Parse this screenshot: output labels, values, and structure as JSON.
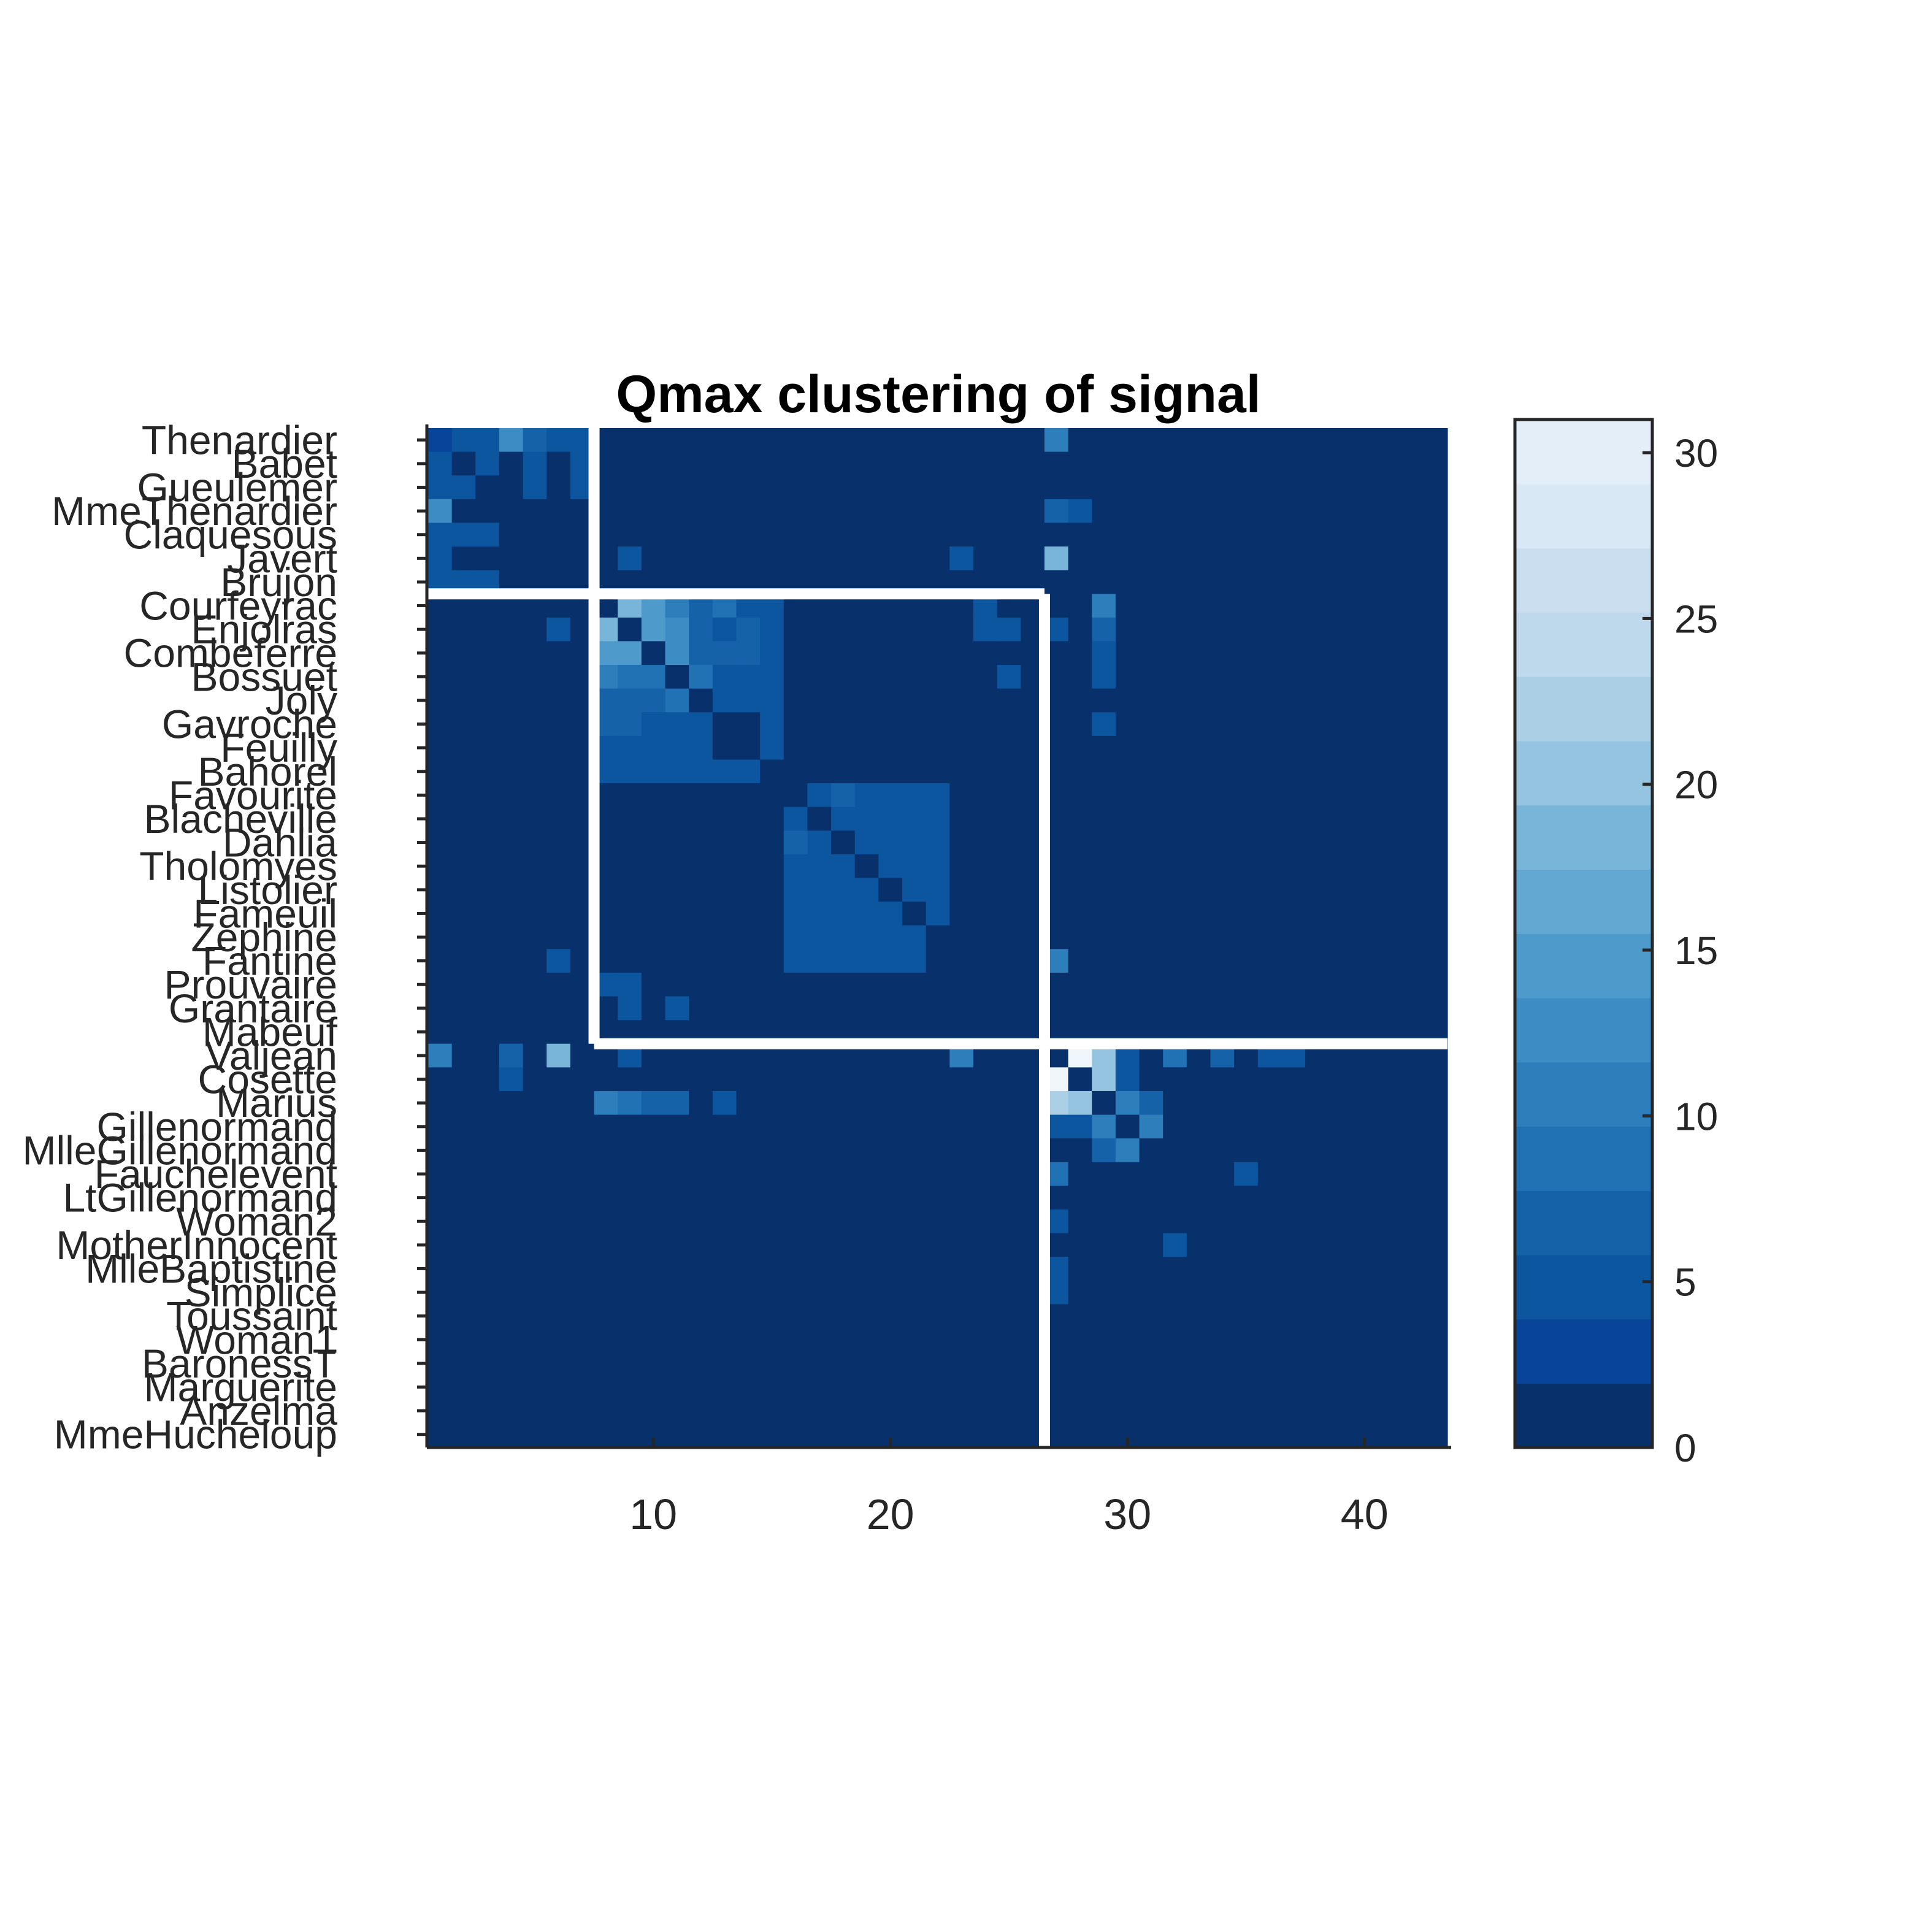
{
  "chart_data": {
    "type": "heatmap",
    "title": "Qmax clustering of signal",
    "xlabel": "",
    "ylabel": "",
    "n": 43,
    "xticks": [
      10,
      20,
      30,
      40
    ],
    "row_labels": [
      "Thenardier",
      "Babet",
      "Gueulemer",
      "MmeThenardier",
      "Claquesous",
      "Javert",
      "Brujon",
      "Courfeyrac",
      "Enjolras",
      "Combeferre",
      "Bossuet",
      "Joly",
      "Gavroche",
      "Feuilly",
      "Bahorel",
      "Favourite",
      "Blacheville",
      "Dahlia",
      "Tholomyes",
      "Listolier",
      "Fameuil",
      "Zephine",
      "Fantine",
      "Prouvaire",
      "Grantaire",
      "Mabeuf",
      "Valjean",
      "Cosette",
      "Marius",
      "Gillenormand",
      "MlleGillenormand",
      "Fauchelevent",
      "LtGillenormand",
      "Woman2",
      "MotherInnocent",
      "MlleBaptistine",
      "Simplice",
      "Toussaint",
      "Woman1",
      "BaronessT",
      "Marguerite",
      "Anzelma",
      "MmeHucheloup"
    ],
    "colorbar": {
      "min": 0,
      "max": 31,
      "levels": 16,
      "ticks": [
        0,
        5,
        10,
        15,
        20,
        25,
        30
      ]
    },
    "colormap": [
      "#08306b",
      "#08449a",
      "#0c56a0",
      "#1562a9",
      "#2171b5",
      "#2f7ebc",
      "#3d8dc4",
      "#4e9acb",
      "#62a8d2",
      "#79b5d9",
      "#94c4df",
      "#abd0e6",
      "#bed8ec",
      "#cadef0",
      "#d9e8f5",
      "#e3eef9",
      "#eff6fc",
      "#f7fbff"
    ],
    "cluster_boundaries": [
      7,
      26
    ],
    "cells": [
      [
        0,
        0,
        2
      ],
      [
        0,
        1,
        4
      ],
      [
        0,
        2,
        4
      ],
      [
        0,
        3,
        12
      ],
      [
        0,
        4,
        6
      ],
      [
        0,
        5,
        4
      ],
      [
        0,
        6,
        5
      ],
      [
        0,
        26,
        11
      ],
      [
        1,
        0,
        4
      ],
      [
        1,
        2,
        4
      ],
      [
        1,
        4,
        4
      ],
      [
        1,
        6,
        4
      ],
      [
        2,
        0,
        5
      ],
      [
        2,
        1,
        4
      ],
      [
        2,
        4,
        4
      ],
      [
        2,
        6,
        4
      ],
      [
        3,
        0,
        12
      ],
      [
        3,
        26,
        6
      ],
      [
        3,
        27,
        4
      ],
      [
        4,
        0,
        4
      ],
      [
        4,
        1,
        4
      ],
      [
        4,
        2,
        4
      ],
      [
        5,
        0,
        4
      ],
      [
        5,
        8,
        4
      ],
      [
        5,
        22,
        4
      ],
      [
        5,
        26,
        19
      ],
      [
        6,
        0,
        4
      ],
      [
        6,
        1,
        4
      ],
      [
        6,
        2,
        4
      ],
      [
        7,
        8,
        18
      ],
      [
        7,
        9,
        14
      ],
      [
        7,
        10,
        10
      ],
      [
        7,
        11,
        6
      ],
      [
        7,
        12,
        9
      ],
      [
        7,
        13,
        5
      ],
      [
        7,
        14,
        5
      ],
      [
        7,
        23,
        4
      ],
      [
        7,
        28,
        10
      ],
      [
        8,
        5,
        4
      ],
      [
        8,
        7,
        18
      ],
      [
        8,
        8,
        1
      ],
      [
        8,
        9,
        15
      ],
      [
        8,
        10,
        12
      ],
      [
        8,
        11,
        6
      ],
      [
        8,
        12,
        5
      ],
      [
        8,
        13,
        6
      ],
      [
        8,
        14,
        4
      ],
      [
        8,
        23,
        4
      ],
      [
        8,
        24,
        4
      ],
      [
        8,
        26,
        4
      ],
      [
        8,
        28,
        7
      ],
      [
        9,
        7,
        14
      ],
      [
        9,
        8,
        15
      ],
      [
        9,
        9,
        1
      ],
      [
        9,
        10,
        12
      ],
      [
        9,
        11,
        6
      ],
      [
        9,
        12,
        6
      ],
      [
        9,
        13,
        6
      ],
      [
        9,
        14,
        5
      ],
      [
        9,
        28,
        5
      ],
      [
        10,
        7,
        10
      ],
      [
        10,
        8,
        8
      ],
      [
        10,
        9,
        8
      ],
      [
        10,
        10,
        1
      ],
      [
        10,
        11,
        8
      ],
      [
        10,
        12,
        4
      ],
      [
        10,
        13,
        4
      ],
      [
        10,
        14,
        4
      ],
      [
        10,
        24,
        4
      ],
      [
        10,
        28,
        5
      ],
      [
        11,
        7,
        6
      ],
      [
        11,
        8,
        6
      ],
      [
        11,
        9,
        6
      ],
      [
        11,
        10,
        8
      ],
      [
        11,
        11,
        1
      ],
      [
        11,
        12,
        4
      ],
      [
        11,
        13,
        5
      ],
      [
        11,
        14,
        5
      ],
      [
        12,
        7,
        7
      ],
      [
        12,
        8,
        7
      ],
      [
        12,
        9,
        5
      ],
      [
        12,
        10,
        5
      ],
      [
        12,
        11,
        4
      ],
      [
        12,
        14,
        5
      ],
      [
        12,
        28,
        4
      ],
      [
        13,
        7,
        5
      ],
      [
        13,
        8,
        5
      ],
      [
        13,
        9,
        5
      ],
      [
        13,
        10,
        5
      ],
      [
        13,
        11,
        5
      ],
      [
        13,
        14,
        4
      ],
      [
        14,
        7,
        4
      ],
      [
        14,
        8,
        5
      ],
      [
        14,
        9,
        5
      ],
      [
        14,
        10,
        4
      ],
      [
        14,
        11,
        5
      ],
      [
        14,
        12,
        5
      ],
      [
        14,
        13,
        4
      ],
      [
        15,
        16,
        4
      ],
      [
        15,
        17,
        6
      ],
      [
        15,
        18,
        5
      ],
      [
        15,
        19,
        5
      ],
      [
        15,
        20,
        5
      ],
      [
        15,
        21,
        5
      ],
      [
        16,
        15,
        4
      ],
      [
        16,
        17,
        5
      ],
      [
        16,
        18,
        5
      ],
      [
        16,
        19,
        5
      ],
      [
        16,
        20,
        5
      ],
      [
        16,
        21,
        5
      ],
      [
        17,
        15,
        6
      ],
      [
        17,
        16,
        5
      ],
      [
        17,
        18,
        5
      ],
      [
        17,
        19,
        5
      ],
      [
        17,
        20,
        5
      ],
      [
        17,
        21,
        5
      ],
      [
        18,
        15,
        5
      ],
      [
        18,
        16,
        5
      ],
      [
        18,
        17,
        5
      ],
      [
        18,
        19,
        5
      ],
      [
        18,
        20,
        5
      ],
      [
        18,
        21,
        5
      ],
      [
        19,
        15,
        5
      ],
      [
        19,
        16,
        5
      ],
      [
        19,
        17,
        5
      ],
      [
        19,
        18,
        5
      ],
      [
        19,
        20,
        5
      ],
      [
        19,
        21,
        5
      ],
      [
        20,
        15,
        5
      ],
      [
        20,
        16,
        5
      ],
      [
        20,
        17,
        5
      ],
      [
        20,
        18,
        5
      ],
      [
        20,
        19,
        5
      ],
      [
        20,
        21,
        5
      ],
      [
        21,
        15,
        5
      ],
      [
        21,
        16,
        5
      ],
      [
        21,
        17,
        5
      ],
      [
        21,
        18,
        5
      ],
      [
        21,
        19,
        5
      ],
      [
        21,
        20,
        5
      ],
      [
        22,
        5,
        4
      ],
      [
        22,
        15,
        5
      ],
      [
        22,
        16,
        5
      ],
      [
        22,
        17,
        5
      ],
      [
        22,
        18,
        5
      ],
      [
        22,
        19,
        5
      ],
      [
        22,
        20,
        5
      ],
      [
        22,
        26,
        10
      ],
      [
        23,
        7,
        4
      ],
      [
        23,
        8,
        4
      ],
      [
        24,
        8,
        4
      ],
      [
        24,
        10,
        4
      ],
      [
        26,
        0,
        11
      ],
      [
        26,
        3,
        6
      ],
      [
        26,
        5,
        19
      ],
      [
        26,
        8,
        4
      ],
      [
        26,
        22,
        10
      ],
      [
        26,
        27,
        31
      ],
      [
        26,
        28,
        21
      ],
      [
        26,
        29,
        4
      ],
      [
        26,
        31,
        8
      ],
      [
        26,
        33,
        6
      ],
      [
        26,
        35,
        5
      ],
      [
        26,
        36,
        5
      ],
      [
        27,
        3,
        4
      ],
      [
        27,
        26,
        31
      ],
      [
        27,
        28,
        21
      ],
      [
        27,
        29,
        4
      ],
      [
        28,
        7,
        10
      ],
      [
        28,
        8,
        8
      ],
      [
        28,
        9,
        6
      ],
      [
        28,
        10,
        6
      ],
      [
        28,
        12,
        5
      ],
      [
        28,
        26,
        22
      ],
      [
        28,
        27,
        21
      ],
      [
        28,
        29,
        11
      ],
      [
        28,
        30,
        6
      ],
      [
        29,
        26,
        4
      ],
      [
        29,
        27,
        5
      ],
      [
        29,
        28,
        11
      ],
      [
        29,
        30,
        10
      ],
      [
        30,
        28,
        6
      ],
      [
        30,
        29,
        10
      ],
      [
        31,
        26,
        8
      ],
      [
        31,
        34,
        5
      ],
      [
        33,
        26,
        4
      ],
      [
        34,
        31,
        4
      ],
      [
        35,
        26,
        5
      ],
      [
        36,
        26,
        4
      ]
    ]
  }
}
